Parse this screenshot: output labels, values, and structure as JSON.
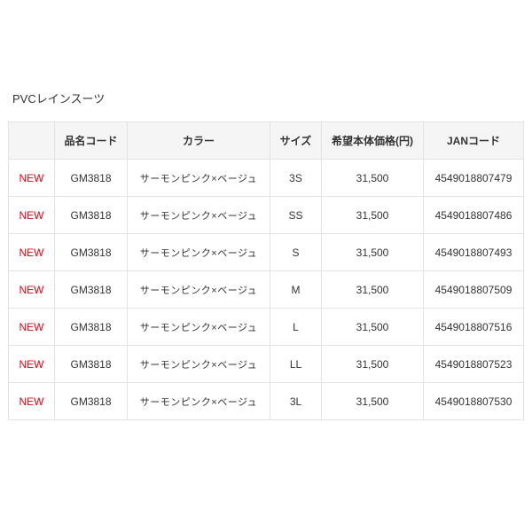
{
  "title": "PVCレインスーツ",
  "colors": {
    "new_badge": "#e60012",
    "header_bg": "#f5f5f5",
    "border": "#e3e3e3"
  },
  "headers": [
    "",
    "品名コード",
    "カラー",
    "サイズ",
    "希望本体価格(円)",
    "JANコード"
  ],
  "rows": [
    {
      "badge": "NEW",
      "code": "GM3818",
      "color": "サーモンピンク×ベージュ",
      "size": "3S",
      "price": "31,500",
      "jan": "4549018807479"
    },
    {
      "badge": "NEW",
      "code": "GM3818",
      "color": "サーモンピンク×ベージュ",
      "size": "SS",
      "price": "31,500",
      "jan": "4549018807486"
    },
    {
      "badge": "NEW",
      "code": "GM3818",
      "color": "サーモンピンク×ベージュ",
      "size": "S",
      "price": "31,500",
      "jan": "4549018807493"
    },
    {
      "badge": "NEW",
      "code": "GM3818",
      "color": "サーモンピンク×ベージュ",
      "size": "M",
      "price": "31,500",
      "jan": "4549018807509"
    },
    {
      "badge": "NEW",
      "code": "GM3818",
      "color": "サーモンピンク×ベージュ",
      "size": "L",
      "price": "31,500",
      "jan": "4549018807516"
    },
    {
      "badge": "NEW",
      "code": "GM3818",
      "color": "サーモンピンク×ベージュ",
      "size": "LL",
      "price": "31,500",
      "jan": "4549018807523"
    },
    {
      "badge": "NEW",
      "code": "GM3818",
      "color": "サーモンピンク×ベージュ",
      "size": "3L",
      "price": "31,500",
      "jan": "4549018807530"
    }
  ]
}
